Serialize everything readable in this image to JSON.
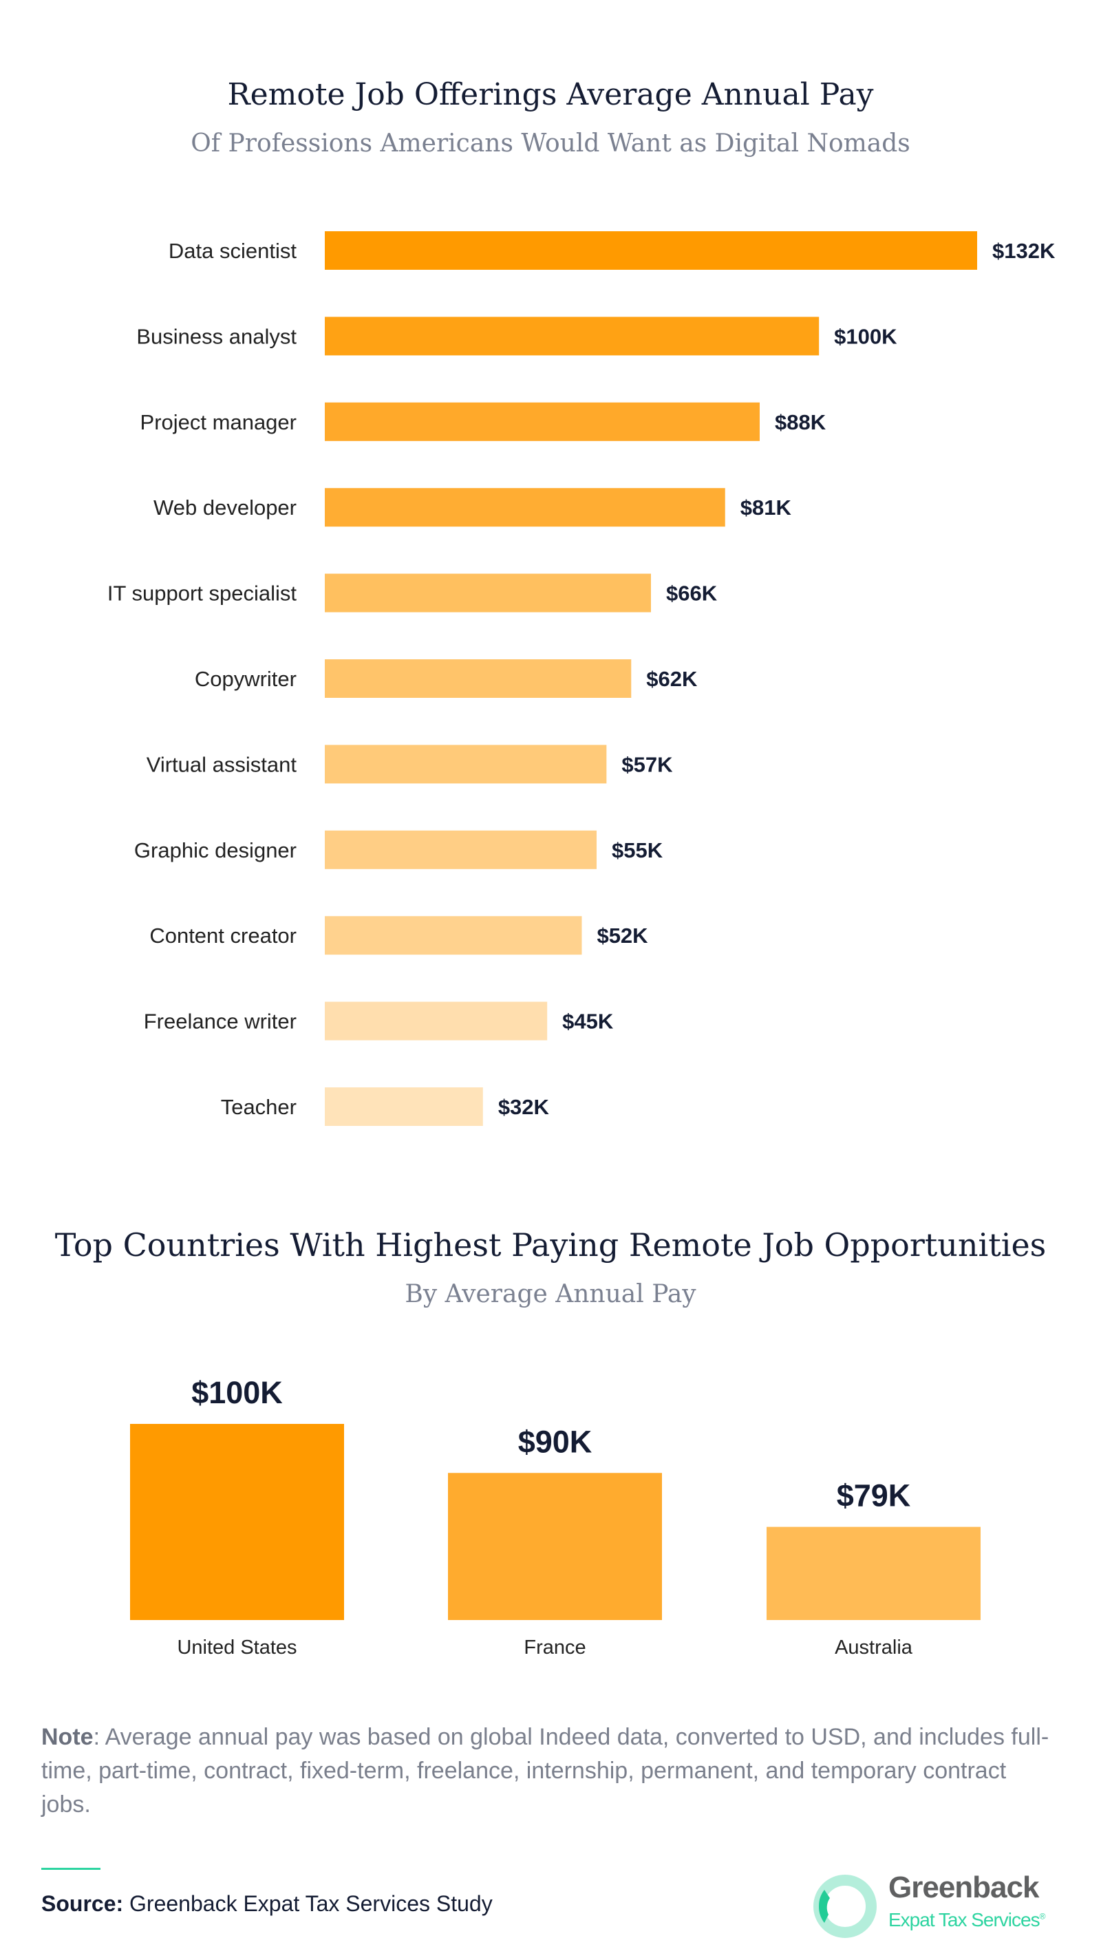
{
  "chart_data": [
    {
      "type": "bar",
      "orientation": "horizontal",
      "title": "Remote Job Offerings Average Annual Pay",
      "subtitle": "Of Professions Americans Would Want as Digital Nomads",
      "categories": [
        "Data scientist",
        "Business analyst",
        "Project manager",
        "Web developer",
        "IT support specialist",
        "Copywriter",
        "Virtual assistant",
        "Graphic designer",
        "Content creator",
        "Freelance writer",
        "Teacher"
      ],
      "values": [
        132,
        100,
        88,
        81,
        66,
        62,
        57,
        55,
        52,
        45,
        32
      ],
      "data_labels": [
        "$132K",
        "$100K",
        "$88K",
        "$81K",
        "$66K",
        "$62K",
        "$57K",
        "$55K",
        "$52K",
        "$45K",
        "$32K"
      ],
      "unit": "thousand USD",
      "colors": [
        "#FF9A00",
        "#FFA214",
        "#FFA92A",
        "#FFAD33",
        "#FFC05F",
        "#FFC46A",
        "#FFCA79",
        "#FFCE85",
        "#FFD28E",
        "#FFDEAE",
        "#FFE3B9"
      ],
      "grid": false,
      "legend": "none"
    },
    {
      "type": "bar",
      "orientation": "vertical",
      "title": "Top Countries With Highest Paying Remote Job Opportunities",
      "subtitle": "By Average Annual Pay",
      "categories": [
        "United States",
        "France",
        "Australia"
      ],
      "values": [
        100,
        90,
        79
      ],
      "data_labels": [
        "$100K",
        "$90K",
        "$79K"
      ],
      "unit": "thousand USD",
      "colors": [
        "#FF9A00",
        "#FFAB2E",
        "#FFBB55"
      ],
      "grid": false,
      "legend": "none"
    }
  ],
  "note": {
    "label": "Note",
    "text": ": Average annual pay was based on global Indeed data, converted to USD, and includes full-time, part-time, contract, fixed-term, freelance, internship, permanent, and temporary contract jobs."
  },
  "source": {
    "label": "Source:",
    "text": " Greenback Expat Tax Services Study"
  },
  "logo": {
    "name": "Greenback",
    "tagline": "Expat Tax Services",
    "mark": "®",
    "colors": {
      "ring": "#B4EEDB",
      "accent": "#22CC96",
      "name": "#5F6061"
    }
  },
  "colors": {
    "text": "#141C33",
    "subtitle": "#7A8090",
    "teal": "#2DD4A0"
  }
}
